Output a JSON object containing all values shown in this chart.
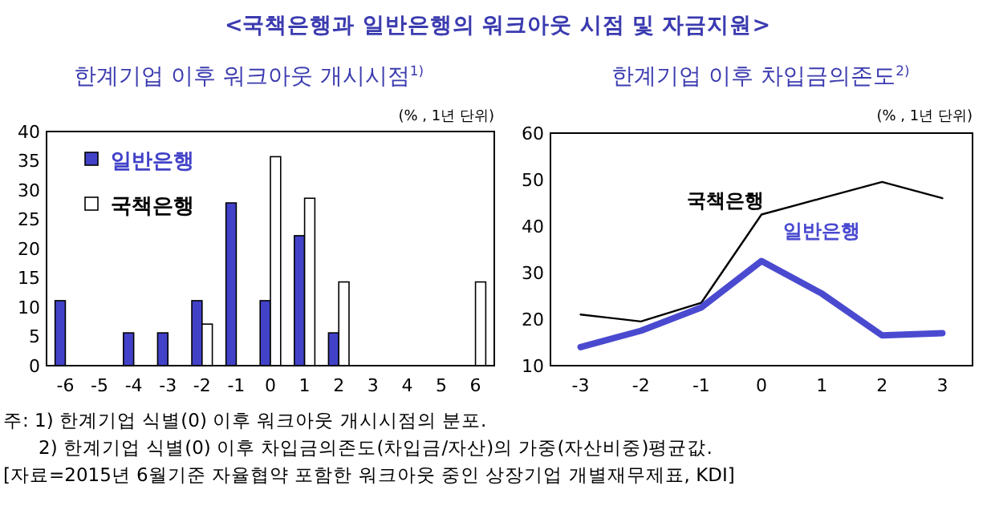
{
  "chart_data": [
    {
      "type": "bar",
      "title": "<국책은행과 일반은행의 워크아웃 시점 및 자금지원>",
      "subtitle": "한계기업 이후 워크아웃 개시시점$^{1)}$",
      "categories": [
        "-6",
        "-5",
        "-4",
        "-3",
        "-2",
        "-1",
        "0",
        "1",
        "2",
        "3",
        "4",
        "5",
        "6"
      ],
      "series": [
        {
          "name": "일반은행",
          "color": "#4242c8",
          "values": [
            11.1,
            null,
            5.6,
            5.6,
            11.1,
            27.8,
            11.1,
            22.2,
            5.6,
            null,
            null,
            null,
            null
          ]
        },
        {
          "name": "국책은행",
          "color": "#ffffff",
          "values": [
            null,
            null,
            null,
            null,
            7.1,
            null,
            35.7,
            28.6,
            14.3,
            null,
            null,
            null,
            14.3
          ]
        }
      ],
      "ylim": [
        0,
        40
      ],
      "yticks": [
        0,
        5,
        10,
        15,
        20,
        25,
        30,
        35,
        40
      ],
      "legend": "top left",
      "annotations": [
        "(% , 1년 단위)"
      ]
    },
    {
      "type": "line",
      "title": "한계기업 이후 차입금의존도$^{2)}$",
      "categories": [
        "-3",
        "-2",
        "-1",
        "0",
        "1",
        "2",
        "3"
      ],
      "series": [
        {
          "name": "국책은행",
          "color": "#000000",
          "values": [
            21,
            19.5,
            23.5,
            42.5,
            46,
            49.5,
            46
          ]
        },
        {
          "name": "일반은행",
          "color": "#4a4ad0",
          "values": [
            14,
            17.5,
            22.5,
            32.5,
            25.5,
            16.5,
            17
          ]
        }
      ],
      "ylim": [
        10,
        60
      ],
      "yticks": [
        10,
        20,
        30,
        40,
        50,
        60
      ],
      "annotations": [
        "(% , 1년 단위)",
        "주: 1) 한계기업 식별(0) 이후 워크아웃 개시시점의 분포.",
        "2) 한계기업 식별(0) 이후 차입금의존도(차입금/자산)의 가중(자산비중)평균값.",
        "[자료=2015년 6월기준 자율협약 포함한 워크아웃 중인 상장기업 개별재무제표, KDI]"
      ]
    }
  ]
}
